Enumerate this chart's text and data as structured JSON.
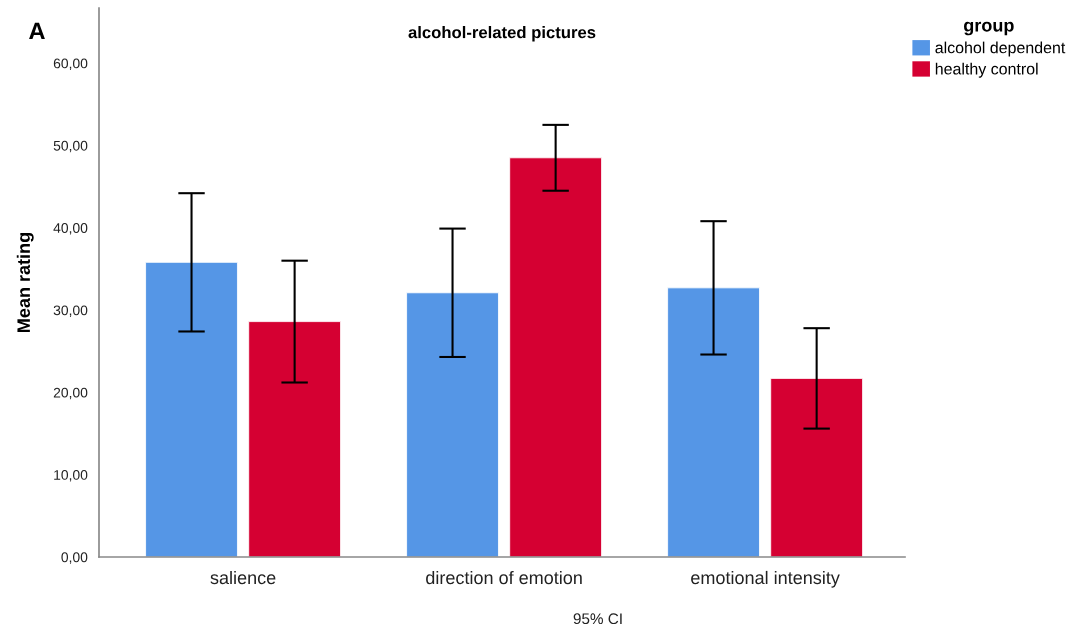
{
  "chart_data": {
    "type": "bar",
    "title": "alcohol-related pictures",
    "ylabel": "Mean rating",
    "legend_title": "group",
    "annotations": [
      "A",
      "95% CI"
    ],
    "categories": [
      "salience",
      "direction of emotion",
      "emotional intensity"
    ],
    "series": [
      {
        "name": "alcohol dependent",
        "color": "#5596e6",
        "values": [
          35.8,
          32.1,
          32.7
        ],
        "errors": [
          8.4,
          7.8,
          8.1
        ]
      },
      {
        "name": "healthy control",
        "color": "#d50032",
        "values": [
          28.6,
          48.5,
          21.7
        ],
        "errors": [
          7.4,
          4.0,
          6.1
        ]
      }
    ],
    "ylim": [
      0,
      66.7
    ],
    "yticks": [
      {
        "value": 0,
        "label": "0,00"
      },
      {
        "value": 10,
        "label": "10,00"
      },
      {
        "value": 20,
        "label": "20,00"
      },
      {
        "value": 30,
        "label": "30,00"
      },
      {
        "value": 40,
        "label": "40,00"
      },
      {
        "value": 50,
        "label": "50,00"
      },
      {
        "value": 60,
        "label": "60,00"
      }
    ],
    "grid": false,
    "legend": "top right"
  }
}
